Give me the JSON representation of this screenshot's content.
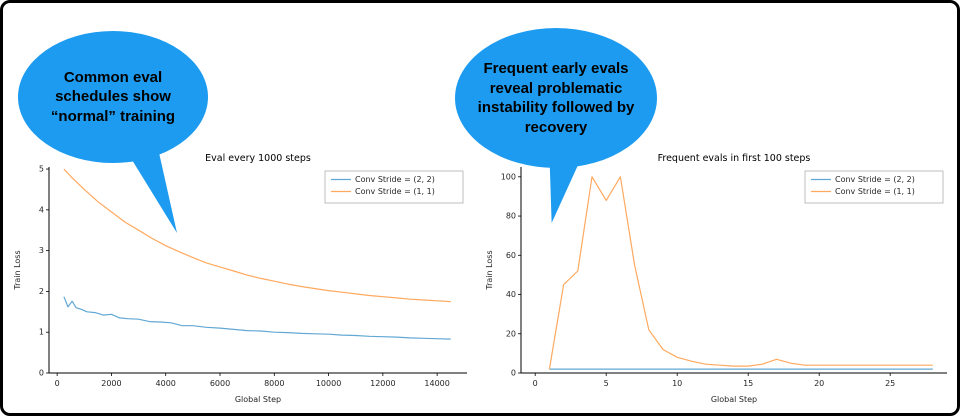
{
  "figure": {
    "left_bubble_text": "Common eval schedules show “normal” training",
    "right_bubble_text": "Frequent early evals reveal problematic instability followed by recovery"
  },
  "colors": {
    "bubble_fill": "#1D9BF0",
    "stride22_line": "#62a8d4",
    "stride11_line": "#ffa95f",
    "axis": "#000000",
    "tick_text": "#262626",
    "legend_border": "#b0b0b0"
  },
  "chart_data": [
    {
      "type": "line",
      "title": "Eval every 1000 steps",
      "xlabel": "Global Step",
      "ylabel": "Train Loss",
      "xlim": [
        -300,
        15100
      ],
      "ylim": [
        0,
        5.05
      ],
      "xticks": [
        0,
        2000,
        4000,
        6000,
        8000,
        10000,
        12000,
        14000
      ],
      "yticks": [
        0,
        1,
        2,
        3,
        4,
        5
      ],
      "grid": false,
      "legend_position": "upper right",
      "series": [
        {
          "name": "Conv Stride =  (2, 2)",
          "color": "#62a8d4",
          "points": [
            [
              250,
              1.87
            ],
            [
              400,
              1.62
            ],
            [
              550,
              1.76
            ],
            [
              700,
              1.6
            ],
            [
              900,
              1.56
            ],
            [
              1100,
              1.5
            ],
            [
              1400,
              1.48
            ],
            [
              1700,
              1.42
            ],
            [
              2000,
              1.44
            ],
            [
              2300,
              1.35
            ],
            [
              2600,
              1.33
            ],
            [
              3000,
              1.32
            ],
            [
              3400,
              1.26
            ],
            [
              3800,
              1.25
            ],
            [
              4200,
              1.23
            ],
            [
              4600,
              1.16
            ],
            [
              5000,
              1.16
            ],
            [
              5500,
              1.12
            ],
            [
              6000,
              1.1
            ],
            [
              6500,
              1.07
            ],
            [
              7000,
              1.04
            ],
            [
              7500,
              1.03
            ],
            [
              8000,
              1.0
            ],
            [
              8500,
              0.99
            ],
            [
              9000,
              0.97
            ],
            [
              9500,
              0.96
            ],
            [
              10000,
              0.95
            ],
            [
              10500,
              0.93
            ],
            [
              11000,
              0.92
            ],
            [
              11500,
              0.9
            ],
            [
              12000,
              0.89
            ],
            [
              12500,
              0.88
            ],
            [
              13000,
              0.86
            ],
            [
              13500,
              0.85
            ],
            [
              14000,
              0.84
            ],
            [
              14500,
              0.83
            ]
          ]
        },
        {
          "name": "Conv Stride =  (1, 1)",
          "color": "#ffa95f",
          "points": [
            [
              250,
              5.0
            ],
            [
              500,
              4.82
            ],
            [
              1000,
              4.5
            ],
            [
              1500,
              4.2
            ],
            [
              2000,
              3.95
            ],
            [
              2500,
              3.7
            ],
            [
              3000,
              3.5
            ],
            [
              3500,
              3.3
            ],
            [
              4000,
              3.12
            ],
            [
              4500,
              2.97
            ],
            [
              5000,
              2.83
            ],
            [
              5500,
              2.7
            ],
            [
              6000,
              2.6
            ],
            [
              6500,
              2.5
            ],
            [
              7000,
              2.4
            ],
            [
              7500,
              2.32
            ],
            [
              8000,
              2.25
            ],
            [
              8500,
              2.18
            ],
            [
              9000,
              2.12
            ],
            [
              9500,
              2.07
            ],
            [
              10000,
              2.02
            ],
            [
              10500,
              1.98
            ],
            [
              11000,
              1.94
            ],
            [
              11500,
              1.9
            ],
            [
              12000,
              1.87
            ],
            [
              12500,
              1.84
            ],
            [
              13000,
              1.81
            ],
            [
              13500,
              1.79
            ],
            [
              14000,
              1.77
            ],
            [
              14500,
              1.75
            ]
          ]
        }
      ]
    },
    {
      "type": "line",
      "title": "Frequent evals in first 100 steps",
      "xlabel": "Global Step",
      "ylabel": "Train Loss",
      "xlim": [
        -1,
        29
      ],
      "ylim": [
        0,
        105
      ],
      "xticks": [
        0,
        5,
        10,
        15,
        20,
        25
      ],
      "yticks": [
        0,
        20,
        40,
        60,
        80,
        100
      ],
      "grid": false,
      "legend_position": "upper right",
      "series": [
        {
          "name": "Conv Stride =  (2, 2)",
          "color": "#62a8d4",
          "points": [
            [
              1,
              2
            ],
            [
              3,
              2
            ],
            [
              5,
              2
            ],
            [
              8,
              2
            ],
            [
              10,
              2
            ],
            [
              13,
              2
            ],
            [
              15,
              2
            ],
            [
              18,
              2
            ],
            [
              20,
              2
            ],
            [
              23,
              2
            ],
            [
              25,
              2
            ],
            [
              28,
              2
            ]
          ]
        },
        {
          "name": "Conv Stride =  (1, 1)",
          "color": "#ffa95f",
          "points": [
            [
              1,
              2
            ],
            [
              2,
              45
            ],
            [
              3,
              52
            ],
            [
              4,
              100
            ],
            [
              5,
              88
            ],
            [
              6,
              100
            ],
            [
              7,
              55
            ],
            [
              8,
              22
            ],
            [
              9,
              12
            ],
            [
              10,
              8
            ],
            [
              11,
              6
            ],
            [
              12,
              4.5
            ],
            [
              13,
              4
            ],
            [
              14,
              3.5
            ],
            [
              15,
              3.5
            ],
            [
              16,
              4.5
            ],
            [
              17,
              7
            ],
            [
              18,
              5
            ],
            [
              19,
              4
            ],
            [
              20,
              4
            ],
            [
              21,
              4
            ],
            [
              22,
              4
            ],
            [
              23,
              4
            ],
            [
              24,
              4
            ],
            [
              25,
              4
            ],
            [
              26,
              4
            ],
            [
              27,
              4
            ],
            [
              28,
              4
            ]
          ]
        }
      ]
    }
  ]
}
